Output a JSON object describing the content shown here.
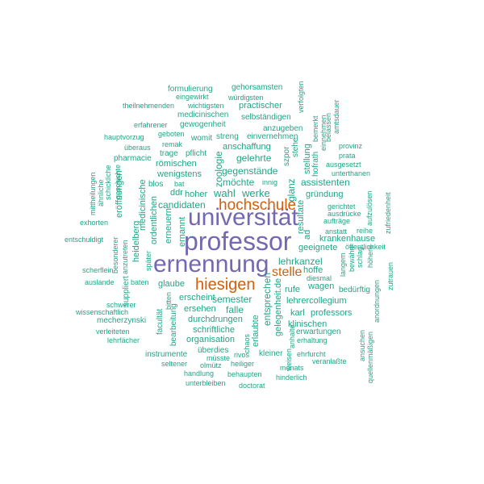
{
  "colors": {
    "primary": "#7469b0",
    "secondary": "#d35f0a",
    "accent": "#22a487",
    "background": "#ffffff"
  },
  "words": [
    {
      "text": "professor",
      "color": "primary"
    },
    {
      "text": "universität",
      "color": "primary"
    },
    {
      "text": "ernennung",
      "color": "primary"
    },
    {
      "text": "hochschule",
      "color": "secondary"
    },
    {
      "text": "hiesigen",
      "color": "secondary"
    },
    {
      "text": "stelle",
      "color": "secondary"
    },
    {
      "text": "formulierung",
      "color": "accent"
    },
    {
      "text": "gehorsamsten",
      "color": "accent"
    },
    {
      "text": "eingewirkt",
      "color": "accent"
    },
    {
      "text": "würdigsten",
      "color": "accent"
    },
    {
      "text": "theilnehmenden",
      "color": "accent"
    },
    {
      "text": "wichtigsten",
      "color": "accent"
    },
    {
      "text": "practischer",
      "color": "accent"
    },
    {
      "text": "medicinischen",
      "color": "accent"
    },
    {
      "text": "selbständigen",
      "color": "accent"
    },
    {
      "text": "erfahrener",
      "color": "accent"
    },
    {
      "text": "gewogenheit",
      "color": "accent"
    },
    {
      "text": "anzugeben",
      "color": "accent"
    },
    {
      "text": "geboten",
      "color": "accent"
    },
    {
      "text": "hauptvorzug",
      "color": "accent"
    },
    {
      "text": "womit",
      "color": "accent"
    },
    {
      "text": "streng",
      "color": "accent"
    },
    {
      "text": "einvernehmen",
      "color": "accent"
    },
    {
      "text": "remak",
      "color": "accent"
    },
    {
      "text": "anschaffung",
      "color": "accent"
    },
    {
      "text": "überaus",
      "color": "accent"
    },
    {
      "text": "trage",
      "color": "accent"
    },
    {
      "text": "pflicht",
      "color": "accent"
    },
    {
      "text": "pharmacie",
      "color": "accent"
    },
    {
      "text": "gelehrte",
      "color": "accent"
    },
    {
      "text": "römischen",
      "color": "accent"
    },
    {
      "text": "gegenstände",
      "color": "accent"
    },
    {
      "text": "wenigstens",
      "color": "accent"
    },
    {
      "text": "möchte",
      "color": "accent"
    },
    {
      "text": "blos",
      "color": "accent"
    },
    {
      "text": "bat",
      "color": "accent"
    },
    {
      "text": "innig",
      "color": "accent"
    },
    {
      "text": "assistenten",
      "color": "accent"
    },
    {
      "text": "ddr",
      "color": "accent"
    },
    {
      "text": "hoher",
      "color": "accent"
    },
    {
      "text": "wahl",
      "color": "accent"
    },
    {
      "text": "werke",
      "color": "accent"
    },
    {
      "text": "gründung",
      "color": "accent"
    },
    {
      "text": "candidaten",
      "color": "accent"
    },
    {
      "text": "gerichtet",
      "color": "accent"
    },
    {
      "text": "aufträge",
      "color": "accent"
    },
    {
      "text": "exhorten",
      "color": "accent"
    },
    {
      "text": "anstatt",
      "color": "accent"
    },
    {
      "text": "reihe",
      "color": "accent"
    },
    {
      "text": "entschuldigt",
      "color": "accent"
    },
    {
      "text": "krankenhause",
      "color": "accent"
    },
    {
      "text": "öffentlichkeit",
      "color": "accent"
    },
    {
      "text": "geeignete",
      "color": "accent"
    },
    {
      "text": "lehrkanzel",
      "color": "accent"
    },
    {
      "text": "hoffe",
      "color": "accent"
    },
    {
      "text": "scherflein",
      "color": "accent"
    },
    {
      "text": "diesmal",
      "color": "accent"
    },
    {
      "text": "auslande",
      "color": "accent"
    },
    {
      "text": "baten",
      "color": "accent"
    },
    {
      "text": "glaube",
      "color": "accent"
    },
    {
      "text": "wagen",
      "color": "accent"
    },
    {
      "text": "rufe",
      "color": "accent"
    },
    {
      "text": "bedürftig",
      "color": "accent"
    },
    {
      "text": "erscheint",
      "color": "accent"
    },
    {
      "text": "semester",
      "color": "accent"
    },
    {
      "text": "lehrercollegium",
      "color": "accent"
    },
    {
      "text": "schwerer",
      "color": "accent"
    },
    {
      "text": "wissenschaftlich",
      "color": "accent"
    },
    {
      "text": "ersehen",
      "color": "accent"
    },
    {
      "text": "falle",
      "color": "accent"
    },
    {
      "text": "karl",
      "color": "accent"
    },
    {
      "text": "professors",
      "color": "accent"
    },
    {
      "text": "mecherzynski",
      "color": "accent"
    },
    {
      "text": "durchdrungen",
      "color": "accent"
    },
    {
      "text": "klinischen",
      "color": "accent"
    },
    {
      "text": "verleiteten",
      "color": "accent"
    },
    {
      "text": "schriftliche",
      "color": "accent"
    },
    {
      "text": "erwartungen",
      "color": "accent"
    },
    {
      "text": "lehrfächer",
      "color": "accent"
    },
    {
      "text": "organisation",
      "color": "accent"
    },
    {
      "text": "erhaltung",
      "color": "accent"
    },
    {
      "text": "instrumente",
      "color": "accent"
    },
    {
      "text": "überdies",
      "color": "accent"
    },
    {
      "text": "kleiner",
      "color": "accent"
    },
    {
      "text": "ehrfurcht",
      "color": "accent"
    },
    {
      "text": "müsste",
      "color": "accent"
    },
    {
      "text": "rivos",
      "color": "accent"
    },
    {
      "text": "veranlaßte",
      "color": "accent"
    },
    {
      "text": "seltener",
      "color": "accent"
    },
    {
      "text": "olmütz",
      "color": "accent"
    },
    {
      "text": "heiliger",
      "color": "accent"
    },
    {
      "text": "monats",
      "color": "accent"
    },
    {
      "text": "handlung",
      "color": "accent"
    },
    {
      "text": "behaupten",
      "color": "accent"
    },
    {
      "text": "hinderlich",
      "color": "accent"
    },
    {
      "text": "unterbleiben",
      "color": "accent"
    },
    {
      "text": "doctorat",
      "color": "accent"
    },
    {
      "text": "provinz",
      "color": "accent"
    },
    {
      "text": "prata",
      "color": "accent"
    },
    {
      "text": "ausgesetzt",
      "color": "accent"
    },
    {
      "text": "unterthanen",
      "color": "accent"
    },
    {
      "text": "ausdrücke",
      "color": "accent"
    },
    {
      "text": "verfolgten",
      "color": "accent"
    },
    {
      "text": "bemerkt",
      "color": "accent"
    },
    {
      "text": "amtsdauer",
      "color": "accent"
    },
    {
      "text": "einnehmen",
      "color": "accent"
    },
    {
      "text": "belassen",
      "color": "accent"
    },
    {
      "text": "hofrath",
      "color": "accent"
    },
    {
      "text": "stellung",
      "color": "accent"
    },
    {
      "text": "szpor",
      "color": "accent"
    },
    {
      "text": "stehe",
      "color": "accent"
    },
    {
      "text": "glanz",
      "color": "accent"
    },
    {
      "text": "resultate",
      "color": "accent"
    },
    {
      "text": "zoologie",
      "color": "accent"
    },
    {
      "text": "ordentlichen",
      "color": "accent"
    },
    {
      "text": "medicinische",
      "color": "accent"
    },
    {
      "text": "eröffnungen",
      "color": "accent"
    },
    {
      "text": "mittheilungen",
      "color": "accent"
    },
    {
      "text": "ähnliche",
      "color": "accent"
    },
    {
      "text": "schickliche",
      "color": "accent"
    },
    {
      "text": "geschichte",
      "color": "accent"
    },
    {
      "text": "heidelberg",
      "color": "accent"
    },
    {
      "text": "erneuern",
      "color": "accent"
    },
    {
      "text": "ernannt",
      "color": "accent"
    },
    {
      "text": "besonderer",
      "color": "accent"
    },
    {
      "text": "anzutreten",
      "color": "accent"
    },
    {
      "text": "suppliert",
      "color": "accent"
    },
    {
      "text": "später",
      "color": "accent"
    },
    {
      "text": "bitten",
      "color": "accent"
    },
    {
      "text": "facultät",
      "color": "accent"
    },
    {
      "text": "bearbeitung",
      "color": "accent"
    },
    {
      "text": "entsprechen",
      "color": "accent"
    },
    {
      "text": "erlaubte",
      "color": "accent"
    },
    {
      "text": "gelegenheit.de",
      "color": "accent"
    },
    {
      "text": "chaos",
      "color": "accent"
    },
    {
      "text": "weisen",
      "color": "accent"
    },
    {
      "text": "anhalte",
      "color": "accent"
    },
    {
      "text": "ad",
      "color": "accent"
    },
    {
      "text": "langem",
      "color": "accent"
    },
    {
      "text": "bewährt",
      "color": "accent"
    },
    {
      "text": "schlag",
      "color": "accent"
    },
    {
      "text": "höhere",
      "color": "accent"
    },
    {
      "text": "aufzulösen",
      "color": "accent"
    },
    {
      "text": "zufriedenheit",
      "color": "accent"
    },
    {
      "text": "zutrauen",
      "color": "accent"
    },
    {
      "text": "anordnungen",
      "color": "accent"
    },
    {
      "text": "ansuchen",
      "color": "accent"
    },
    {
      "text": "quellenmäßigen",
      "color": "accent"
    }
  ]
}
